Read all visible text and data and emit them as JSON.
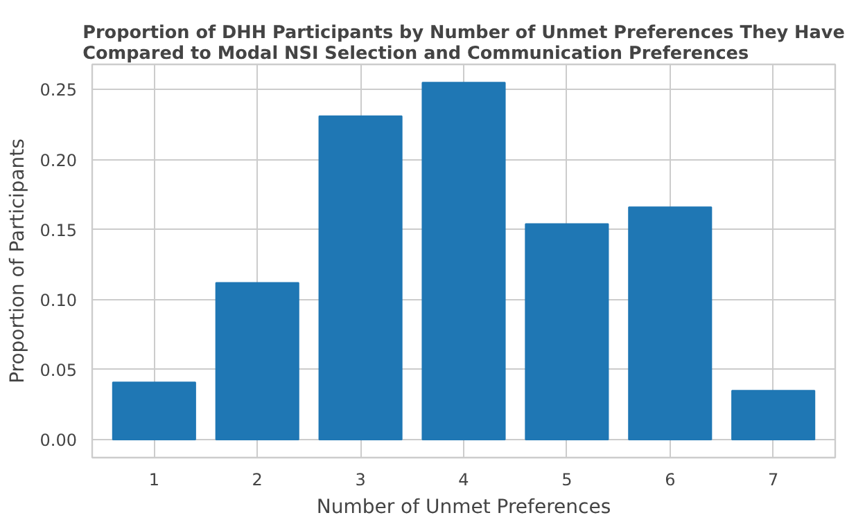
{
  "chart_data": {
    "type": "bar",
    "title": "Proportion of DHH Participants by Number of Unmet Preferences They Have\nCompared to Modal NSI Selection and Communication Preferences",
    "xlabel": "Number of Unmet Preferences",
    "ylabel": "Proportion of Participants",
    "categories": [
      "1",
      "2",
      "3",
      "4",
      "5",
      "6",
      "7"
    ],
    "values": [
      0.041,
      0.112,
      0.231,
      0.255,
      0.154,
      0.166,
      0.035
    ],
    "color": "#1f77b4",
    "ylim": [
      -0.0128,
      0.268
    ],
    "yticks": [
      {
        "value": 0,
        "label": "0.00"
      },
      {
        "value": 0.05,
        "label": "0.05"
      },
      {
        "value": 0.1,
        "label": "0.10"
      },
      {
        "value": 0.15,
        "label": "0.15"
      },
      {
        "value": 0.2,
        "label": "0.20"
      },
      {
        "value": 0.25,
        "label": "0.25"
      }
    ],
    "grid": true
  }
}
